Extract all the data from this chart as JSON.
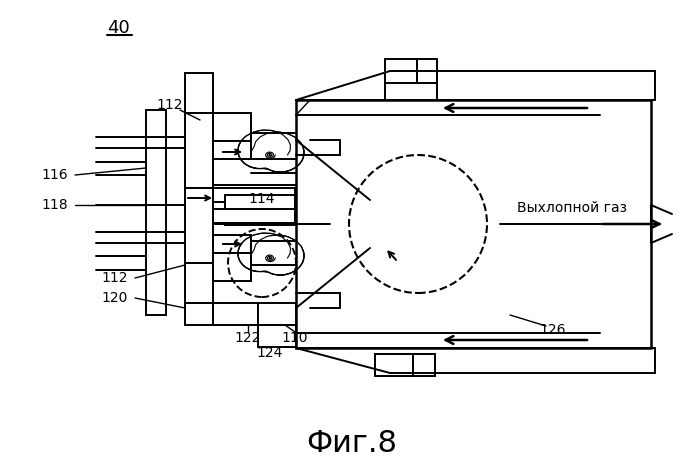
{
  "bg_color": "#ffffff",
  "title": "Фиг.8",
  "label_40": "40",
  "label_112a": "112",
  "label_112b": "112",
  "label_116": "116",
  "label_118": "118",
  "label_114": "114",
  "label_120": "120",
  "label_122": "122",
  "label_124": "124",
  "label_110": "110",
  "label_126": "126",
  "exhaust_label": "Выхлопной газ"
}
